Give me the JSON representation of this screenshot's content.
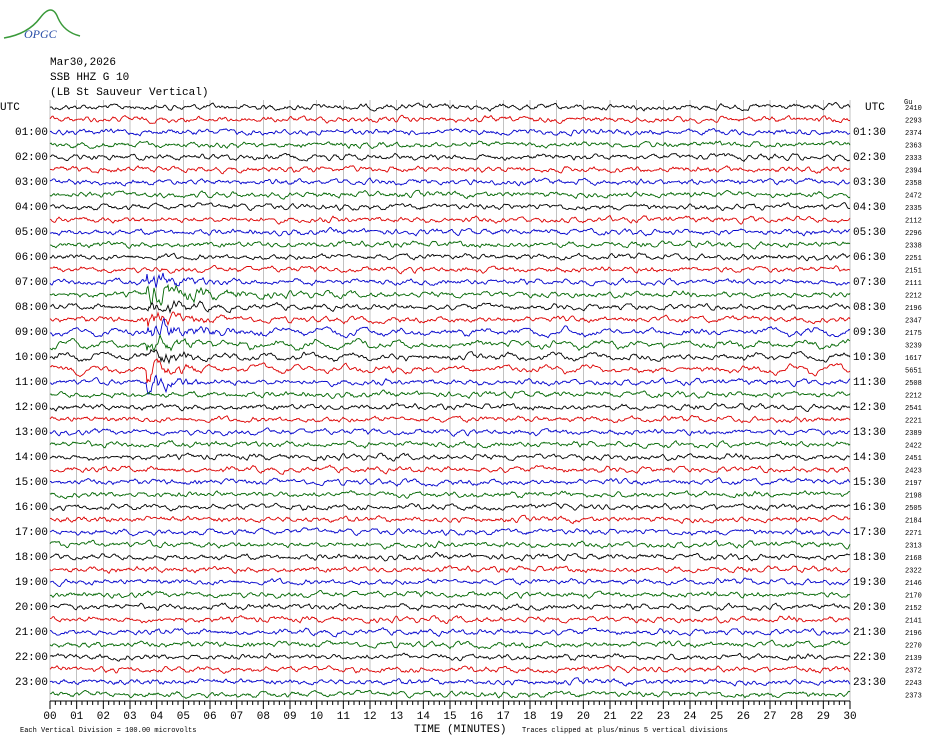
{
  "logo": "OPGC",
  "header": {
    "date": "Mar30,2026",
    "station": "SSB HHZ G 10",
    "location": "(LB St Sauveur Vertical)"
  },
  "left_axis": {
    "title": "UTC",
    "labels": [
      "01:00",
      "02:00",
      "03:00",
      "04:00",
      "05:00",
      "06:00",
      "07:00",
      "08:00",
      "09:00",
      "10:00",
      "11:00",
      "12:00",
      "13:00",
      "14:00",
      "15:00",
      "16:00",
      "17:00",
      "18:00",
      "19:00",
      "20:00",
      "21:00",
      "22:00",
      "23:00"
    ]
  },
  "right_axis": {
    "title": "UTC",
    "labels": [
      "01:30",
      "02:30",
      "03:30",
      "04:30",
      "05:30",
      "06:30",
      "07:30",
      "08:30",
      "09:30",
      "10:30",
      "11:30",
      "12:30",
      "13:30",
      "14:30",
      "15:30",
      "16:30",
      "17:30",
      "18:30",
      "19:30",
      "20:30",
      "21:30",
      "22:30",
      "23:30"
    ]
  },
  "gain_title": "Gu",
  "gains": [
    2410,
    2293,
    2374,
    2363,
    2333,
    2394,
    2358,
    2472,
    2335,
    2112,
    2296,
    2338,
    2251,
    2151,
    2111,
    2212,
    2196,
    2347,
    2175,
    3239,
    1617,
    5651,
    2508,
    2212,
    2541,
    2221,
    2389,
    2422,
    2451,
    2423,
    2197,
    2198,
    2505,
    2184,
    2271,
    2313,
    2168,
    2322,
    2146,
    2170,
    2152,
    2141,
    2196,
    2270,
    2139,
    2372,
    2243,
    2373
  ],
  "x_axis": {
    "title": "TIME (MINUTES)",
    "ticks": [
      "00",
      "01",
      "02",
      "03",
      "04",
      "05",
      "06",
      "07",
      "08",
      "09",
      "10",
      "11",
      "12",
      "13",
      "14",
      "15",
      "16",
      "17",
      "18",
      "19",
      "20",
      "21",
      "22",
      "23",
      "24",
      "25",
      "26",
      "27",
      "28",
      "29",
      "30"
    ]
  },
  "footer": {
    "scale": "Each Vertical Division =  100.00 microvolts",
    "clip": "Traces clipped at plus/minus 5 vertical divisions"
  }
}
